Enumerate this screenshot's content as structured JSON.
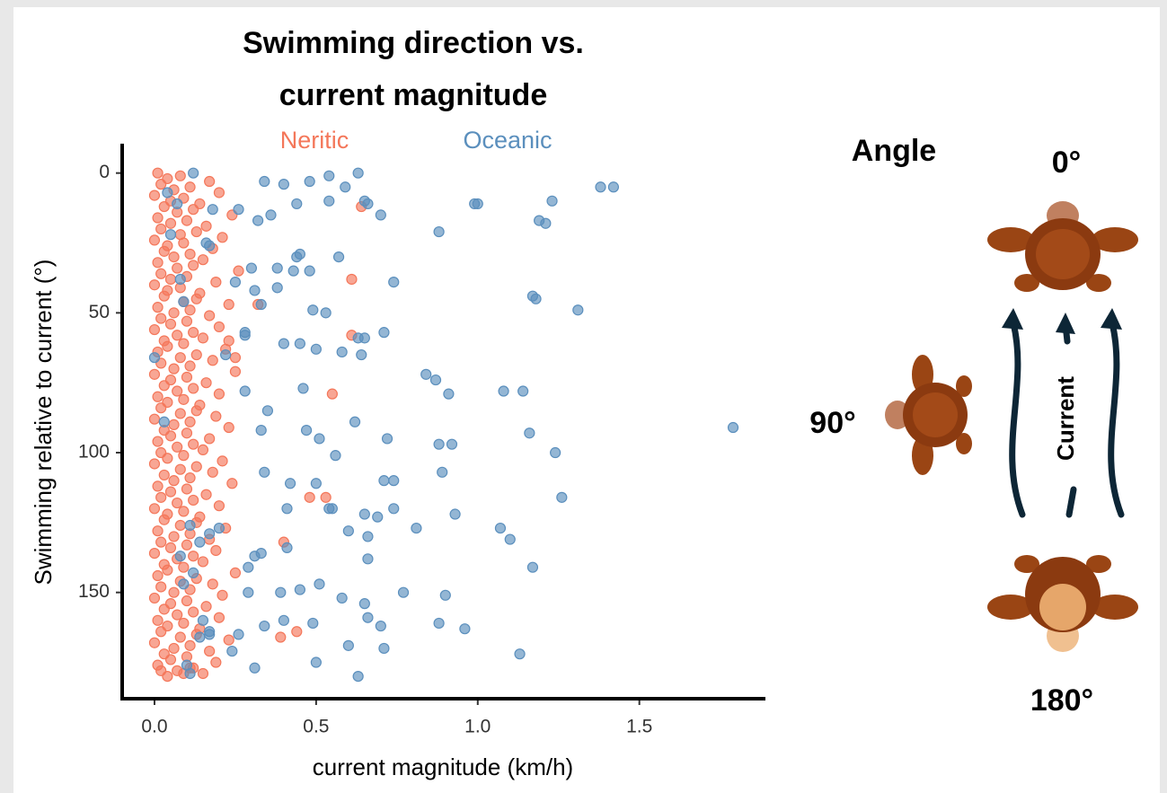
{
  "chart_data": {
    "type": "scatter",
    "title": [
      "Swimming direction vs.",
      "current magnitude"
    ],
    "xlabel": "current magnitude (km/h)",
    "ylabel": "Swimming relative to current (°)",
    "xlim": [
      -0.1,
      1.89
    ],
    "ylim": [
      -10.5,
      188
    ],
    "y_inverted": true,
    "xticks": [
      {
        "value": 0,
        "label": "0.0"
      },
      {
        "value": 0.5,
        "label": "0.5"
      },
      {
        "value": 1,
        "label": "1.0"
      },
      {
        "value": 1.5,
        "label": "1.5"
      }
    ],
    "yticks": [
      0,
      50,
      100,
      150
    ],
    "series": [
      {
        "name": "Neritic",
        "color": "#f4775a",
        "x": [
          0.01,
          0.04,
          0.08,
          0.17,
          0.02,
          0.06,
          0.11,
          0.2,
          0.0,
          0.05,
          0.09,
          0.14,
          0.03,
          0.07,
          0.12,
          0.24,
          0.01,
          0.05,
          0.1,
          0.16,
          0.02,
          0.08,
          0.13,
          0.21,
          0.0,
          0.04,
          0.09,
          0.18,
          0.03,
          0.06,
          0.11,
          0.15,
          0.01,
          0.07,
          0.12,
          0.26,
          0.02,
          0.05,
          0.1,
          0.19,
          0.0,
          0.04,
          0.08,
          0.14,
          0.03,
          0.09,
          0.13,
          0.23,
          0.01,
          0.06,
          0.11,
          0.17,
          0.02,
          0.05,
          0.1,
          0.2,
          0.0,
          0.07,
          0.12,
          0.15,
          0.03,
          0.04,
          0.09,
          0.22,
          0.01,
          0.08,
          0.13,
          0.18,
          0.02,
          0.06,
          0.11,
          0.25,
          0.0,
          0.05,
          0.1,
          0.16,
          0.03,
          0.07,
          0.12,
          0.2,
          0.01,
          0.04,
          0.09,
          0.14,
          0.02,
          0.08,
          0.13,
          0.19,
          0.0,
          0.06,
          0.11,
          0.23,
          0.03,
          0.05,
          0.1,
          0.17,
          0.01,
          0.07,
          0.12,
          0.15,
          0.02,
          0.04,
          0.09,
          0.21,
          0.0,
          0.08,
          0.13,
          0.18,
          0.03,
          0.06,
          0.11,
          0.24,
          0.01,
          0.05,
          0.1,
          0.16,
          0.02,
          0.07,
          0.12,
          0.2,
          0.0,
          0.04,
          0.09,
          0.14,
          0.03,
          0.08,
          0.13,
          0.22,
          0.01,
          0.06,
          0.11,
          0.17,
          0.02,
          0.05,
          0.1,
          0.19,
          0.0,
          0.07,
          0.12,
          0.15,
          0.03,
          0.04,
          0.09,
          0.25,
          0.01,
          0.08,
          0.13,
          0.18,
          0.02,
          0.06,
          0.11,
          0.21,
          0.0,
          0.05,
          0.1,
          0.16,
          0.03,
          0.07,
          0.12,
          0.2,
          0.01,
          0.04,
          0.09,
          0.14,
          0.02,
          0.08,
          0.13,
          0.23,
          0.0,
          0.06,
          0.11,
          0.17,
          0.03,
          0.05,
          0.1,
          0.19,
          0.01,
          0.07,
          0.12,
          0.15,
          0.02,
          0.04,
          0.09,
          0.11,
          0.64,
          0.53,
          0.48,
          0.61,
          0.61,
          0.55,
          0.4,
          0.39,
          0.44,
          0.32,
          0.25,
          0.23
        ],
        "y": [
          0,
          2,
          1,
          3,
          4,
          6,
          5,
          7,
          8,
          10,
          9,
          11,
          12,
          14,
          13,
          15,
          16,
          18,
          17,
          19,
          20,
          22,
          21,
          23,
          24,
          26,
          25,
          27,
          28,
          30,
          29,
          31,
          32,
          34,
          33,
          35,
          36,
          38,
          37,
          39,
          40,
          42,
          41,
          43,
          44,
          46,
          45,
          47,
          48,
          50,
          49,
          51,
          52,
          54,
          53,
          55,
          56,
          58,
          57,
          59,
          60,
          62,
          61,
          63,
          64,
          66,
          65,
          67,
          68,
          70,
          69,
          71,
          72,
          74,
          73,
          75,
          76,
          78,
          77,
          79,
          80,
          82,
          81,
          83,
          84,
          86,
          85,
          87,
          88,
          90,
          89,
          91,
          92,
          94,
          93,
          95,
          96,
          98,
          97,
          99,
          100,
          102,
          101,
          103,
          104,
          106,
          105,
          107,
          108,
          110,
          109,
          111,
          112,
          114,
          113,
          115,
          116,
          118,
          117,
          119,
          120,
          122,
          121,
          123,
          124,
          126,
          125,
          127,
          128,
          130,
          129,
          131,
          132,
          134,
          133,
          135,
          136,
          138,
          137,
          139,
          140,
          142,
          141,
          143,
          144,
          146,
          145,
          147,
          148,
          150,
          149,
          151,
          152,
          154,
          153,
          155,
          156,
          158,
          157,
          159,
          160,
          162,
          161,
          163,
          164,
          166,
          165,
          167,
          168,
          170,
          169,
          171,
          172,
          174,
          173,
          175,
          176,
          178,
          177,
          179,
          178,
          180,
          179,
          177,
          12,
          116,
          116,
          58,
          38,
          79,
          132,
          166,
          164,
          47,
          66,
          60
        ]
      },
      {
        "name": "Oceanic",
        "color": "#5b8fbd",
        "x": [
          0.54,
          0.63,
          0.59,
          0.34,
          0.4,
          0.48,
          0.65,
          0.66,
          0.7,
          0.54,
          0.44,
          0.36,
          0.26,
          0.32,
          0.18,
          0.99,
          1.0,
          1.23,
          1.19,
          1.21,
          1.38,
          1.42,
          0.88,
          0.45,
          0.44,
          0.57,
          0.16,
          0.17,
          0.38,
          0.3,
          0.43,
          0.48,
          0.74,
          0.38,
          0.31,
          0.25,
          1.17,
          1.18,
          1.31,
          0.49,
          0.53,
          0.33,
          0.71,
          0.65,
          0.63,
          0.58,
          0.5,
          0.4,
          0.45,
          0.64,
          0.28,
          0.28,
          0.22,
          0.84,
          0.87,
          0.91,
          1.08,
          1.14,
          0.46,
          0.28,
          0.35,
          0.33,
          0.47,
          0.51,
          0.62,
          0.56,
          0.72,
          0.88,
          0.92,
          0.89,
          1.16,
          1.24,
          1.79,
          0.5,
          0.42,
          0.34,
          0.71,
          0.74,
          1.26,
          0.54,
          0.55,
          0.41,
          0.65,
          0.69,
          0.74,
          0.93,
          0.81,
          1.07,
          1.1,
          0.66,
          0.6,
          0.31,
          0.33,
          0.41,
          0.66,
          0.29,
          1.17,
          0.77,
          0.9,
          0.51,
          0.45,
          0.39,
          0.29,
          0.58,
          0.65,
          0.88,
          0.96,
          0.7,
          0.66,
          0.49,
          0.4,
          0.34,
          0.26,
          0.6,
          0.71,
          0.5,
          0.63,
          0.31,
          0.24,
          1.13,
          0.15,
          0.17,
          0.11,
          0.0,
          0.04,
          0.07,
          0.12,
          0.05,
          0.08,
          0.09,
          0.03,
          0.11,
          0.08,
          0.12,
          0.14,
          0.09,
          0.17,
          0.2,
          0.14,
          0.1,
          0.17
        ],
        "y": [
          1,
          0,
          5,
          3,
          4,
          3,
          10,
          11,
          15,
          10,
          11,
          15,
          13,
          17,
          13,
          11,
          11,
          10,
          17,
          18,
          5,
          5,
          21,
          29,
          30,
          30,
          25,
          26,
          34,
          34,
          35,
          35,
          39,
          41,
          42,
          39,
          44,
          45,
          49,
          49,
          50,
          47,
          57,
          59,
          59,
          64,
          63,
          61,
          61,
          65,
          57,
          58,
          65,
          72,
          74,
          79,
          78,
          78,
          77,
          78,
          85,
          92,
          92,
          95,
          89,
          101,
          95,
          97,
          97,
          107,
          93,
          100,
          91,
          111,
          111,
          107,
          110,
          110,
          116,
          120,
          120,
          120,
          122,
          123,
          120,
          122,
          127,
          127,
          131,
          130,
          128,
          137,
          136,
          134,
          138,
          141,
          141,
          150,
          151,
          147,
          149,
          150,
          150,
          152,
          154,
          161,
          163,
          162,
          159,
          161,
          160,
          162,
          165,
          169,
          170,
          175,
          180,
          177,
          171,
          172,
          160,
          164,
          179,
          66,
          7,
          11,
          0,
          22,
          38,
          46,
          89,
          126,
          137,
          143,
          132,
          147,
          129,
          127,
          166,
          176,
          165
        ]
      }
    ]
  },
  "diagram": {
    "title": "Angle",
    "angles": [
      "0°",
      "90°",
      "180°"
    ],
    "current": "Current"
  }
}
